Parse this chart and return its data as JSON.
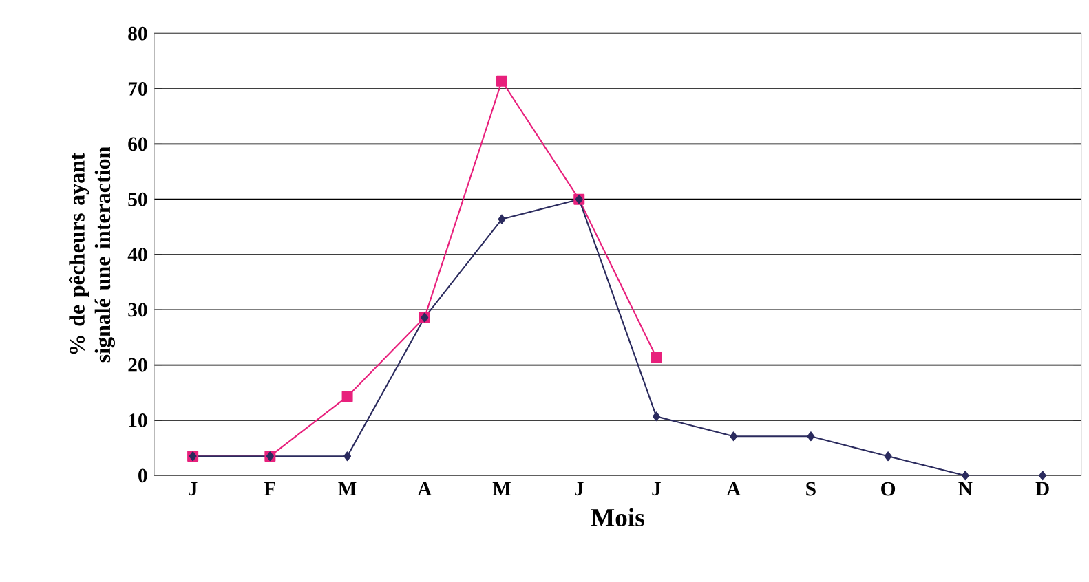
{
  "chart_data": {
    "type": "line",
    "xlabel": "Mois",
    "ylabel": "% de pêcheurs ayant signalé une interaction",
    "categories": [
      "J",
      "F",
      "M",
      "A",
      "M",
      "J",
      "J",
      "A",
      "S",
      "O",
      "N",
      "D"
    ],
    "series": [
      {
        "color": "#2b2b5e",
        "marker": "diamond",
        "values": [
          3.5,
          3.5,
          3.5,
          28.6,
          46.4,
          50,
          10.7,
          7.1,
          7.1,
          3.5,
          0,
          0
        ]
      },
      {
        "color": "#e8207c",
        "marker": "square",
        "values": [
          3.5,
          3.5,
          14.3,
          28.6,
          71.4,
          50,
          21.4,
          null,
          null,
          null,
          null,
          null
        ]
      }
    ],
    "ylim": [
      0,
      80
    ],
    "yticks": [
      0,
      10,
      20,
      30,
      40,
      50,
      60,
      70,
      80
    ],
    "grid": "y"
  }
}
